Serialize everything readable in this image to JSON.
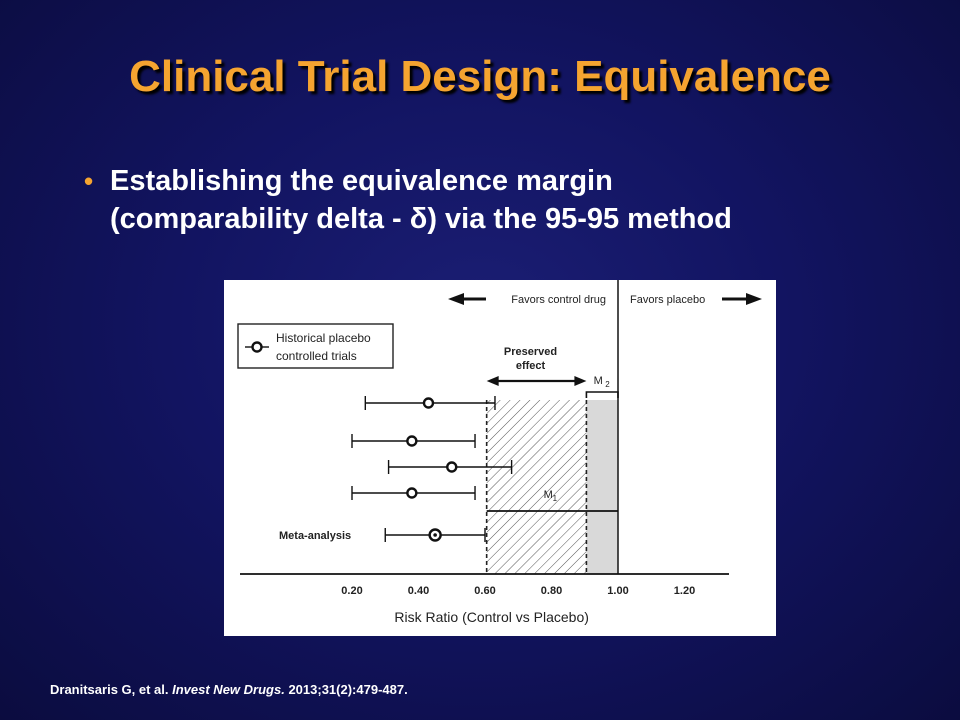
{
  "slide": {
    "title": "Clinical Trial Design: Equivalence",
    "bullet_line1": "Establishing the equivalence margin",
    "bullet_line2": "(comparability delta - δ) via the 95-95 method",
    "citation_authors": "Dranitsaris G, et al.",
    "citation_journal": "Invest New Drugs.",
    "citation_ref": "2013;31(2):479-487."
  },
  "colors": {
    "title": "#f5a430",
    "bullet_marker": "#f5a430",
    "text": "#ffffff",
    "m2_fill": "#d9d9d9"
  },
  "chart_data": {
    "type": "forest",
    "xlabel": "Risk Ratio (Control vs Placebo)",
    "xticks": [
      "0.20",
      "0.40",
      "0.60",
      "0.80",
      "1.00",
      "1.20"
    ],
    "xlim": [
      0.1,
      1.35
    ],
    "reference_line": 1.0,
    "legend": {
      "label_line1": "Historical placebo",
      "label_line2": "controlled trials",
      "position": "top-left"
    },
    "header_left": "Favors control drug",
    "header_right": "Favors placebo",
    "preserved_effect": {
      "label_line1": "Preserved",
      "label_line2": "effect",
      "from": 0.605,
      "to": 0.905
    },
    "m1": {
      "label": "M",
      "sub": "1",
      "from": 0.605,
      "to": 1.0
    },
    "m2": {
      "label": "M",
      "sub": "2",
      "from": 0.905,
      "to": 1.0
    },
    "trials": [
      {
        "estimate": 0.43,
        "lower": 0.24,
        "upper": 0.63
      },
      {
        "estimate": 0.38,
        "lower": 0.2,
        "upper": 0.57
      },
      {
        "estimate": 0.5,
        "lower": 0.31,
        "upper": 0.68
      },
      {
        "estimate": 0.38,
        "lower": 0.2,
        "upper": 0.57
      }
    ],
    "meta_analysis": {
      "label": "Meta-analysis",
      "estimate": 0.45,
      "lower": 0.3,
      "upper": 0.6
    }
  }
}
